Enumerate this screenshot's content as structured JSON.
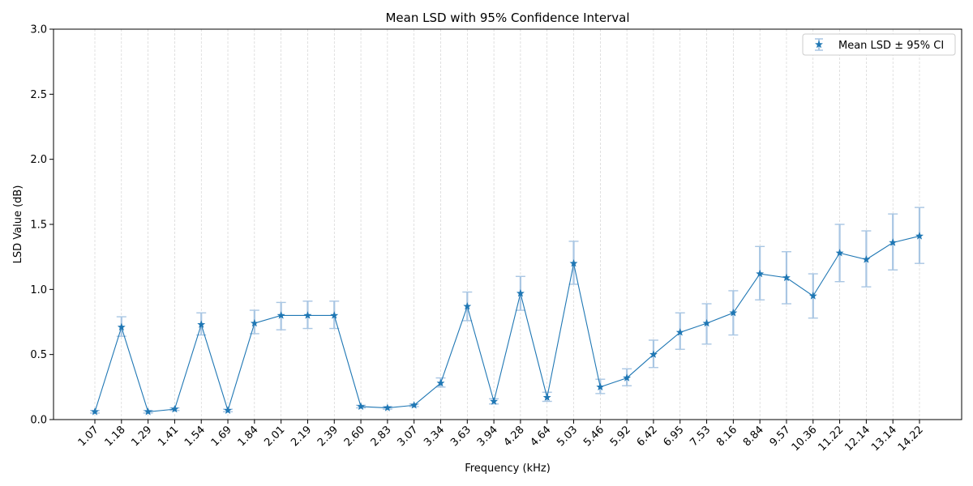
{
  "chart_data": {
    "type": "line",
    "title": "Mean LSD with 95% Confidence Interval",
    "xlabel": "Frequency (kHz)",
    "ylabel": "LSD Value (dB)",
    "ylim": [
      0,
      3
    ],
    "yticks": [
      "0.0",
      "0.5",
      "1.0",
      "1.5",
      "2.0",
      "2.5",
      "3.0"
    ],
    "categories": [
      "1.07",
      "1.18",
      "1.29",
      "1.41",
      "1.54",
      "1.69",
      "1.84",
      "2.01",
      "2.19",
      "2.39",
      "2.60",
      "2.83",
      "3.07",
      "3.34",
      "3.63",
      "3.94",
      "4.28",
      "4.64",
      "5.03",
      "5.46",
      "5.92",
      "6.42",
      "6.95",
      "7.53",
      "8.16",
      "8.84",
      "9.57",
      "10.36",
      "11.22",
      "12.14",
      "13.14",
      "14.22"
    ],
    "grid": "x-dashed",
    "legend_position": "top-right",
    "series": [
      {
        "name": "Mean LSD ± 95% CI",
        "color": "#1f77b4",
        "errorbar_color": "#a9c6e3",
        "marker": "star",
        "values": [
          0.06,
          0.71,
          0.06,
          0.08,
          0.73,
          0.07,
          0.74,
          0.8,
          0.8,
          0.8,
          0.1,
          0.09,
          0.11,
          0.28,
          0.87,
          0.14,
          0.97,
          0.17,
          1.2,
          0.25,
          0.32,
          0.5,
          0.67,
          0.74,
          0.82,
          1.12,
          1.09,
          0.95,
          1.28,
          1.23,
          1.36,
          1.41
        ],
        "ci_lower": [
          0.05,
          0.64,
          0.05,
          0.07,
          0.65,
          0.06,
          0.66,
          0.69,
          0.7,
          0.7,
          0.09,
          0.08,
          0.1,
          0.25,
          0.76,
          0.12,
          0.84,
          0.14,
          1.04,
          0.2,
          0.26,
          0.4,
          0.54,
          0.58,
          0.65,
          0.92,
          0.89,
          0.78,
          1.06,
          1.02,
          1.15,
          1.2
        ],
        "ci_upper": [
          0.07,
          0.79,
          0.07,
          0.09,
          0.82,
          0.08,
          0.84,
          0.9,
          0.91,
          0.91,
          0.11,
          0.1,
          0.12,
          0.32,
          0.98,
          0.16,
          1.1,
          0.21,
          1.37,
          0.31,
          0.39,
          0.61,
          0.82,
          0.89,
          0.99,
          1.33,
          1.29,
          1.12,
          1.5,
          1.45,
          1.58,
          1.63
        ]
      }
    ]
  }
}
